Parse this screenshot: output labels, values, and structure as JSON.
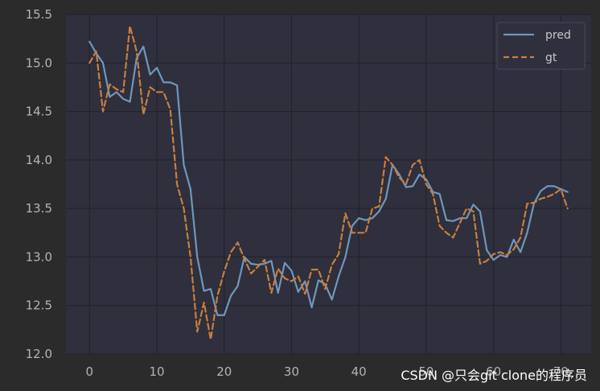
{
  "theme": {
    "figure_bg": "#2b2b2b",
    "axes_bg": "#2f2f3d",
    "grid": "#22222c",
    "tick_text": "#b4b4b4",
    "pred_color": "#6f97bb",
    "gt_color": "#c77f3d"
  },
  "chart_data": {
    "type": "line",
    "title": "",
    "xlabel": "",
    "ylabel": "",
    "xlim": [
      -3.5,
      74.5
    ],
    "ylim": [
      12.0,
      15.5
    ],
    "grid": true,
    "legend_position": "top-right",
    "xticks": [
      0,
      10,
      20,
      30,
      40,
      50,
      60,
      70
    ],
    "yticks": [
      12.0,
      12.5,
      13.0,
      13.5,
      14.0,
      14.5,
      15.0,
      15.5
    ],
    "xtick_labels": [
      "0",
      "10",
      "20",
      "30",
      "40",
      "50",
      "60",
      "70"
    ],
    "ytick_labels": [
      "12.0",
      "12.5",
      "13.0",
      "13.5",
      "14.0",
      "14.5",
      "15.0",
      "15.5"
    ],
    "series": [
      {
        "name": "pred",
        "style": "solid",
        "color": "#6f97bb",
        "x": [
          0,
          1,
          2,
          3,
          4,
          5,
          6,
          7,
          8,
          9,
          10,
          11,
          12,
          13,
          14,
          15,
          16,
          17,
          18,
          19,
          20,
          21,
          22,
          23,
          24,
          25,
          26,
          27,
          28,
          29,
          30,
          31,
          32,
          33,
          34,
          35,
          36,
          37,
          38,
          39,
          40,
          41,
          42,
          43,
          44,
          45,
          46,
          47,
          48,
          49,
          50,
          51,
          52,
          53,
          54,
          55,
          56,
          57,
          58,
          59,
          60,
          61,
          62,
          63,
          64,
          65,
          66,
          67,
          68,
          69,
          70,
          71
        ],
        "y": [
          15.22,
          15.1,
          15.0,
          14.65,
          14.7,
          14.63,
          14.6,
          15.05,
          15.17,
          14.88,
          14.95,
          14.8,
          14.8,
          14.77,
          13.95,
          13.7,
          13.0,
          12.65,
          12.67,
          12.4,
          12.4,
          12.6,
          12.7,
          13.0,
          12.93,
          12.92,
          12.93,
          12.96,
          12.63,
          12.94,
          12.86,
          12.64,
          12.75,
          12.48,
          12.76,
          12.72,
          12.56,
          12.8,
          13.0,
          13.32,
          13.4,
          13.38,
          13.4,
          13.47,
          13.6,
          13.95,
          13.85,
          13.72,
          13.73,
          13.85,
          13.8,
          13.67,
          13.65,
          13.38,
          13.37,
          13.4,
          13.4,
          13.54,
          13.47,
          13.07,
          12.97,
          13.02,
          13.0,
          13.18,
          13.05,
          13.25,
          13.55,
          13.68,
          13.73,
          13.73,
          13.7,
          13.67
        ]
      },
      {
        "name": "gt",
        "style": "dashed",
        "color": "#c77f3d",
        "x": [
          0,
          1,
          2,
          3,
          4,
          5,
          6,
          7,
          8,
          9,
          10,
          11,
          12,
          13,
          14,
          15,
          16,
          17,
          18,
          19,
          20,
          21,
          22,
          23,
          24,
          25,
          26,
          27,
          28,
          29,
          30,
          31,
          32,
          33,
          34,
          35,
          36,
          37,
          38,
          39,
          40,
          41,
          42,
          43,
          44,
          45,
          46,
          47,
          48,
          49,
          50,
          51,
          52,
          53,
          54,
          55,
          56,
          57,
          58,
          59,
          60,
          61,
          62,
          63,
          64,
          65,
          66,
          67,
          68,
          69,
          70,
          71
        ],
        "y": [
          15.0,
          15.12,
          14.5,
          14.78,
          14.73,
          14.7,
          15.38,
          15.12,
          14.47,
          14.75,
          14.7,
          14.7,
          14.52,
          13.75,
          13.5,
          13.0,
          12.23,
          12.53,
          12.15,
          12.6,
          12.85,
          13.05,
          13.15,
          12.98,
          12.83,
          12.9,
          12.97,
          12.63,
          12.88,
          12.78,
          12.75,
          12.8,
          12.62,
          12.87,
          12.87,
          12.67,
          12.92,
          13.03,
          13.45,
          13.25,
          13.25,
          13.25,
          13.5,
          13.52,
          14.03,
          13.95,
          13.82,
          13.75,
          13.95,
          14.0,
          13.75,
          13.65,
          13.32,
          13.25,
          13.2,
          13.35,
          13.5,
          13.47,
          12.93,
          12.96,
          13.03,
          13.05,
          13.02,
          13.08,
          13.2,
          13.55,
          13.56,
          13.6,
          13.62,
          13.65,
          13.7,
          13.5
        ]
      }
    ]
  },
  "legend": {
    "items": [
      {
        "label": "pred",
        "style": "solid",
        "color": "#6f97bb"
      },
      {
        "label": "gt",
        "style": "dashed",
        "color": "#c77f3d"
      }
    ]
  },
  "watermark": {
    "text": "CSDN @只会git clone的程序员"
  }
}
